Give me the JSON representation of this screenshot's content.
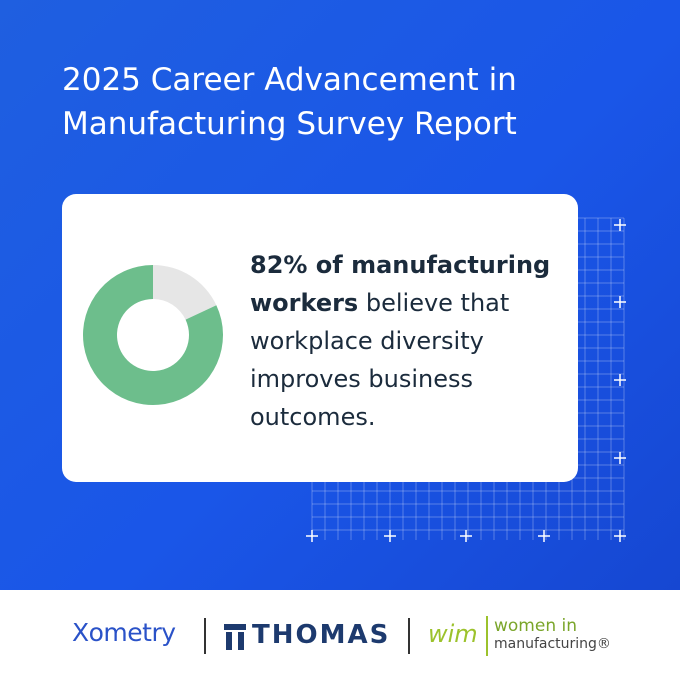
{
  "header": {
    "title": "2025 Career Advancement in Manufacturing Survey Report"
  },
  "card": {
    "donut": {
      "value": 82,
      "color": "#6dbe8c",
      "track_color": "#e6e6e6"
    },
    "statement_bold": "82% of manufacturing workers",
    "statement_rest": "believe that workplace diversity improves business outcomes."
  },
  "footer": {
    "logos": [
      "Xometry",
      "THOMAS",
      "wim",
      "women in",
      "manufacturing®"
    ]
  }
}
